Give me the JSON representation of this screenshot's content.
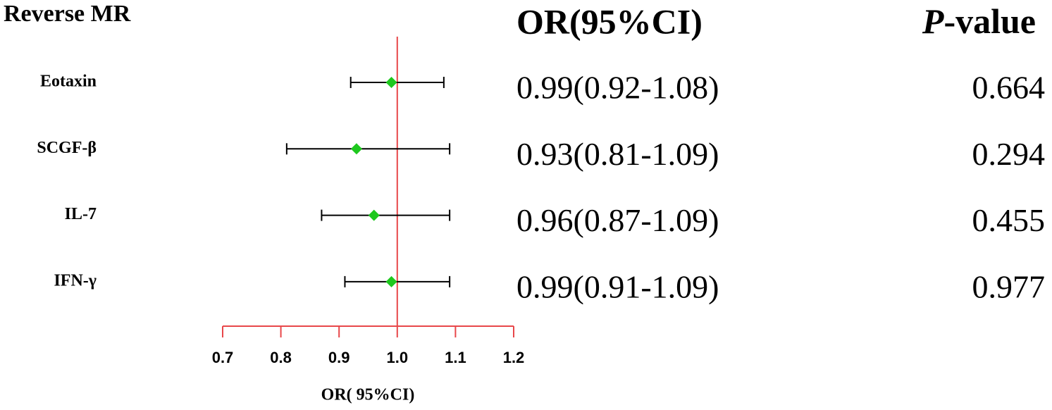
{
  "chart_data": {
    "type": "forest",
    "title": "Reverse MR",
    "or_header": "OR(95%CI)",
    "p_header": {
      "italic": "P",
      "rest": "-value"
    },
    "xlabel": "OR( 95%CI)",
    "categories": [
      "Eotaxin",
      "SCGF-β",
      "IL-7",
      "IFN-γ"
    ],
    "values": [
      0.99,
      0.93,
      0.96,
      0.99
    ],
    "lower": [
      0.92,
      0.81,
      0.87,
      0.91
    ],
    "upper": [
      1.08,
      1.09,
      1.09,
      1.09
    ],
    "value_labels": [
      "0.99(0.92-1.08)",
      "0.93(0.81-1.09)",
      "0.96(0.87-1.09)",
      "0.99(0.91-1.09)"
    ],
    "p_values": [
      0.664,
      0.294,
      0.455,
      0.977
    ],
    "xlim": [
      0.7,
      1.2
    ],
    "xticks": [
      0.7,
      0.8,
      0.9,
      {
        "value": 1,
        "label": "1.0"
      },
      1.1,
      1.2
    ],
    "reference": 1,
    "point_color": "#1ec81e",
    "axis_color": "#e8474a",
    "bar_color": "#000000"
  }
}
